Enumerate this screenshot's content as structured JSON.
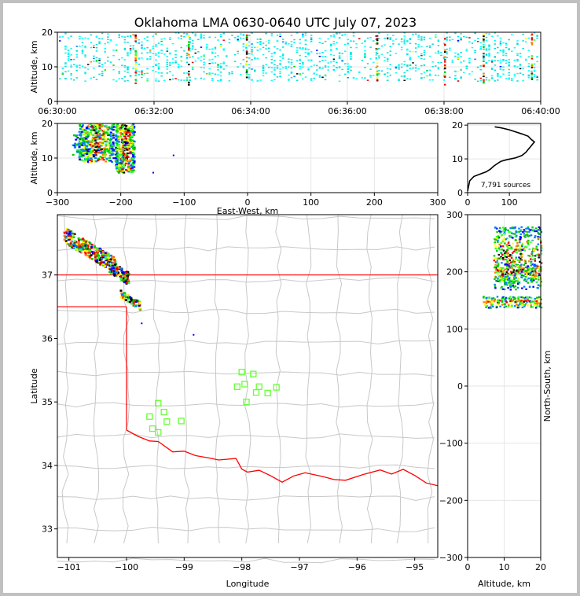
{
  "chart_data": [
    {
      "type": "scatter",
      "title": "Oklahoma LMA 0630-0640 UTC July 07, 2023",
      "ylabel": "Altitude, km",
      "xlim": [
        "06:30:00",
        "06:40:00"
      ],
      "ylim": [
        0,
        20
      ],
      "x_ticks": [
        "06:30:00",
        "06:32:00",
        "06:34:00",
        "06:36:00",
        "06:38:00",
        "06:40:00"
      ],
      "y_ticks": [
        "0",
        "10",
        "20"
      ],
      "description_series": "time-height VHF source density, 5–20 km throughout the period"
    },
    {
      "type": "heatmap",
      "xlabel": "East-West, km",
      "ylabel": "Altitude, km",
      "xlim": [
        -300,
        300
      ],
      "ylim": [
        0,
        20
      ],
      "x_ticks": [
        "−300",
        "−200",
        "−100",
        "0",
        "100",
        "200",
        "300"
      ],
      "y_ticks": [
        "0",
        "10",
        "20"
      ]
    },
    {
      "type": "line",
      "xlim": [
        0,
        175
      ],
      "ylim": [
        0,
        20
      ],
      "x_ticks": [
        "0",
        "100"
      ],
      "y_ticks": [
        "0",
        "10",
        "20"
      ],
      "annotation": "7,791 sources",
      "profile": [
        [
          0,
          0.5
        ],
        [
          5,
          3.5
        ],
        [
          15,
          4.8
        ],
        [
          30,
          5.5
        ],
        [
          45,
          6.2
        ],
        [
          55,
          7.0
        ],
        [
          62,
          7.8
        ],
        [
          70,
          8.5
        ],
        [
          80,
          9.3
        ],
        [
          95,
          9.8
        ],
        [
          115,
          10.3
        ],
        [
          130,
          11.0
        ],
        [
          140,
          12.0
        ],
        [
          145,
          12.8
        ],
        [
          150,
          13.5
        ],
        [
          155,
          14.3
        ],
        [
          160,
          15.0
        ],
        [
          152,
          15.8
        ],
        [
          145,
          16.7
        ],
        [
          130,
          17.4
        ],
        [
          115,
          18.0
        ],
        [
          100,
          18.6
        ],
        [
          80,
          19.2
        ],
        [
          65,
          19.5
        ]
      ]
    },
    {
      "type": "scatter",
      "xlabel": "Longitude",
      "ylabel": "Latitude",
      "xlim": [
        -101.2,
        -94.6
      ],
      "ylim": [
        32.55,
        37.95
      ],
      "x_ticks": [
        "−101",
        "−100",
        "−99",
        "−98",
        "−97",
        "−96",
        "−95"
      ],
      "y_ticks": [
        "33",
        "34",
        "35",
        "36",
        "37"
      ],
      "stations": [
        [
          -99.45,
          34.98
        ],
        [
          -99.35,
          34.84
        ],
        [
          -99.6,
          34.77
        ],
        [
          -99.3,
          34.69
        ],
        [
          -99.05,
          34.7
        ],
        [
          -99.55,
          34.58
        ],
        [
          -99.45,
          34.52
        ],
        [
          -98.0,
          35.47
        ],
        [
          -97.8,
          35.44
        ],
        [
          -97.95,
          35.28
        ],
        [
          -98.08,
          35.24
        ],
        [
          -97.7,
          35.24
        ],
        [
          -97.75,
          35.15
        ],
        [
          -97.55,
          35.14
        ],
        [
          -97.4,
          35.23
        ],
        [
          -97.92,
          35.0
        ]
      ],
      "source_clusters": [
        {
          "lon": -100.6,
          "lat": 37.35,
          "density": "high"
        },
        {
          "lon": -100.1,
          "lat": 37.05,
          "density": "high"
        },
        {
          "lon": -99.95,
          "lat": 36.6,
          "density": "medium"
        }
      ]
    },
    {
      "type": "heatmap",
      "xlabel": "Altitude, km",
      "ylabel": "North-South, km",
      "xlim": [
        0,
        20
      ],
      "ylim": [
        -300,
        300
      ],
      "x_ticks": [
        "0",
        "10",
        "20"
      ],
      "y_ticks": [
        "−300",
        "−200",
        "−100",
        "0",
        "100",
        "200",
        "300"
      ]
    }
  ],
  "colors": {
    "state_border": "#ff0000",
    "county_lines": "#c8c8c8",
    "station_marker": "#66ff33",
    "profile_line": "#000000"
  }
}
